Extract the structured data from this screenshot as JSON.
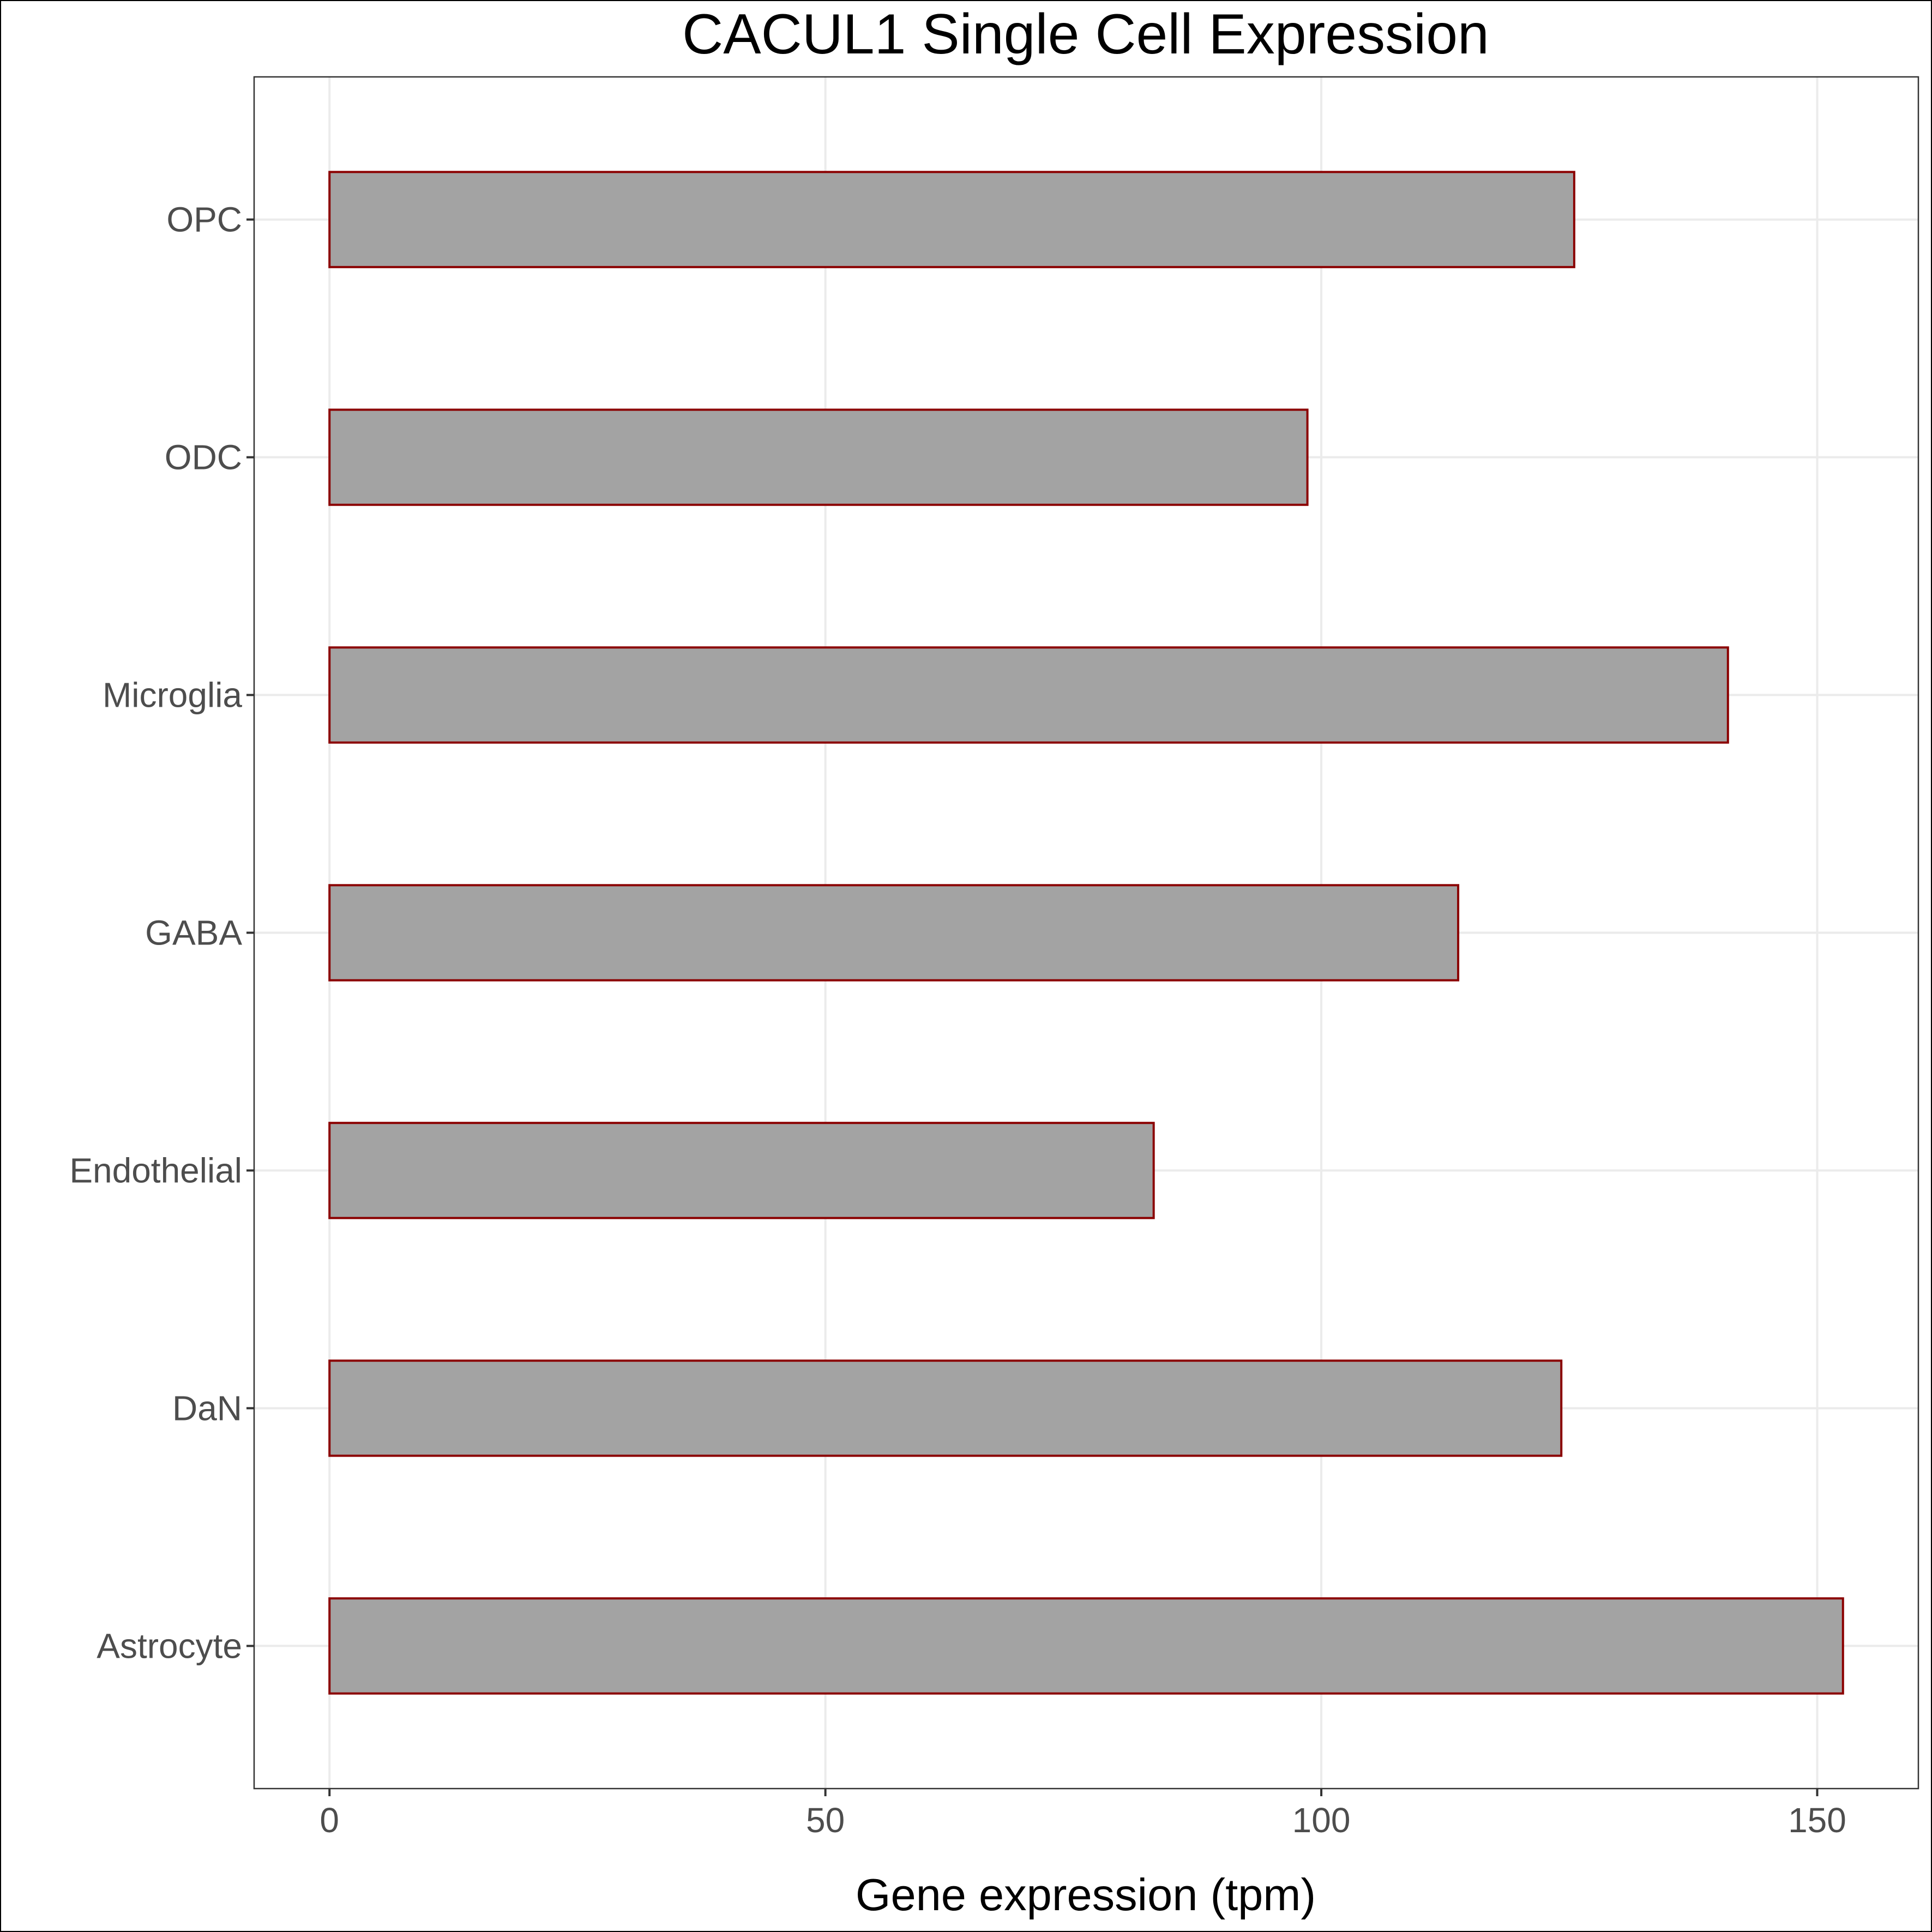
{
  "chart_data": {
    "type": "bar",
    "orientation": "horizontal",
    "title": "CACUL1 Single Cell Expression",
    "xlabel": "Gene expression (tpm)",
    "ylabel": "",
    "categories": [
      "Astrocyte",
      "DaN",
      "Endothelial",
      "GABA",
      "Microglia",
      "ODC",
      "OPC"
    ],
    "values": [
      152.6,
      124.2,
      83.1,
      113.8,
      141.0,
      98.6,
      125.5
    ],
    "xlim": [
      -7.6,
      160.2
    ],
    "xticks": [
      0,
      50,
      100,
      150
    ],
    "grid": true,
    "legend": "none",
    "colors": {
      "bar_fill": "#a3a3a3",
      "bar_stroke": "#8b0000",
      "grid": "#ebebeb",
      "tick_text": "#4d4d4d"
    }
  }
}
